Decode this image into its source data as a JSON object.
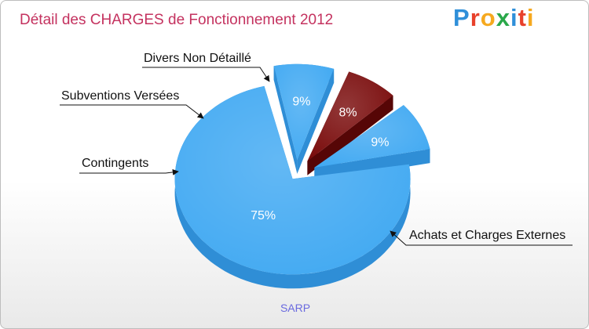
{
  "title": "Détail des CHARGES de Fonctionnement 2012",
  "logo": {
    "text": "Proxiti",
    "colors": [
      "#2f8fd9",
      "#e8412c",
      "#f6a91f",
      "#2aa84a",
      "#2f8fd9",
      "#e8412c",
      "#f6a91f"
    ]
  },
  "subtitle": "SARP",
  "chart_data": {
    "type": "pie",
    "title": "Détail des CHARGES de Fonctionnement 2012",
    "subtitle": "SARP",
    "slices": [
      {
        "label": "Achats et Charges Externes",
        "value": 75,
        "pct_label": "75%",
        "color": "#41a9f2",
        "side_color": "#2f8ed6"
      },
      {
        "label": "Contingents",
        "value": 9,
        "pct_label": "9%",
        "color": "#41a9f2",
        "side_color": "#2f8ed6"
      },
      {
        "label": "Subventions Versées",
        "value": 8,
        "pct_label": "8%",
        "color": "#7a0c0c",
        "side_color": "#560606"
      },
      {
        "label": "Divers Non Détaillé",
        "value": 9,
        "pct_label": "9%",
        "color": "#41a9f2",
        "side_color": "#2f8ed6"
      }
    ]
  }
}
